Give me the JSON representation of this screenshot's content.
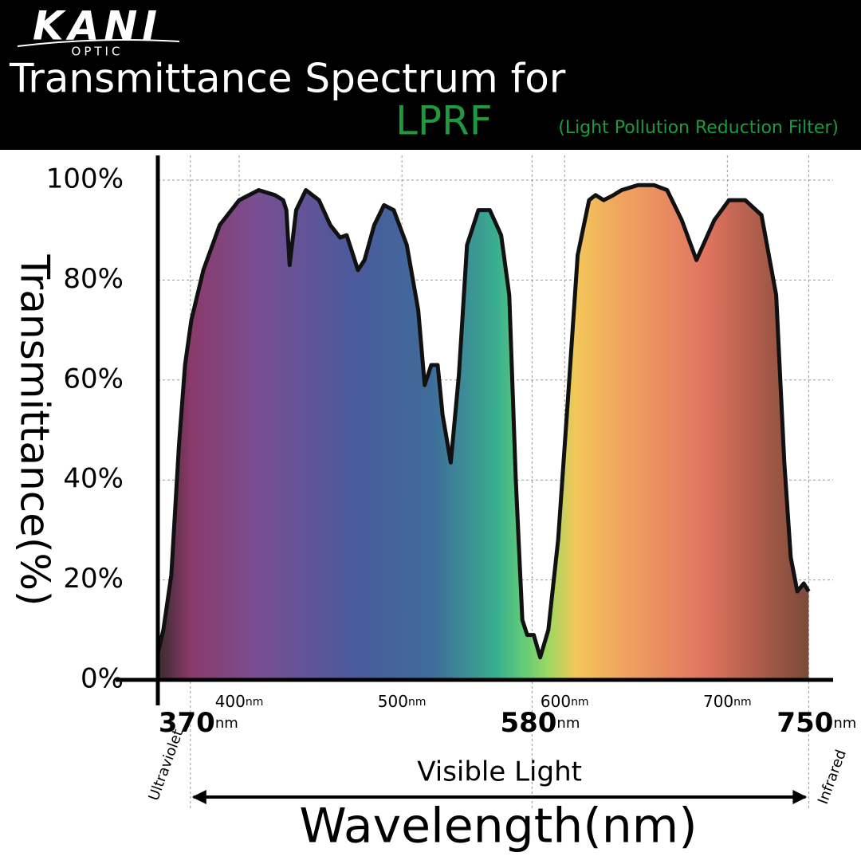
{
  "chart_data": {
    "type": "area",
    "brand": "KANI",
    "brand_sub": "OPTIC",
    "title": "Transmittance Spectrum for",
    "title_highlight": "LPRF",
    "subtitle": "(Light Pollution Reduction Filter)",
    "highlight_color": "#1e9a3c",
    "y_label": "Transmittance(%)",
    "x_label": "Wavelength(nm)",
    "x_unit": "nm",
    "xlim": [
      350,
      765
    ],
    "ylim": [
      0,
      100
    ],
    "xticks": [
      400,
      500,
      600,
      700
    ],
    "yticks": [
      {
        "value": 0,
        "label": "0%"
      },
      {
        "value": 20,
        "label": "20%"
      },
      {
        "value": 40,
        "label": "40%"
      },
      {
        "value": 60,
        "label": "60%"
      },
      {
        "value": 80,
        "label": "80%"
      },
      {
        "value": 100,
        "label": "100%"
      }
    ],
    "x_markers": [
      370,
      580,
      750
    ],
    "grid": true,
    "color": "#111111",
    "annotations": {
      "left": "Ultraviolet",
      "right": "Infrared",
      "span": "Visible Light"
    },
    "x": [
      350,
      353.4,
      358.3,
      363,
      366.7,
      370.6,
      378,
      388,
      400,
      412,
      422,
      427,
      429,
      431,
      435,
      441,
      449,
      456,
      462,
      466,
      469,
      473,
      477,
      483,
      489,
      495,
      503,
      510,
      514,
      518,
      522,
      525,
      530,
      535,
      540,
      547,
      554,
      561,
      566,
      570,
      574,
      577,
      581,
      585,
      590,
      596,
      602,
      608,
      615,
      619,
      624,
      630,
      635,
      645,
      655,
      663,
      672,
      681,
      692,
      701,
      711,
      721,
      730,
      735,
      739,
      743,
      747,
      750
    ],
    "values": [
      5.3,
      10,
      21,
      47,
      63,
      72,
      82,
      91,
      96,
      98,
      97,
      96,
      94,
      83,
      94,
      98,
      96,
      91,
      88.5,
      89,
      86,
      82,
      84,
      91,
      95,
      94,
      87,
      74,
      59,
      63,
      63,
      53,
      43.5,
      61,
      87,
      94,
      94,
      89,
      77,
      40,
      12,
      9,
      9,
      4.5,
      10,
      28,
      56,
      85,
      96,
      97,
      96,
      97,
      98,
      99,
      99,
      98,
      92,
      84,
      92,
      96,
      96,
      93,
      77,
      43.5,
      24.5,
      17.7,
      19.3,
      17.7
    ]
  }
}
